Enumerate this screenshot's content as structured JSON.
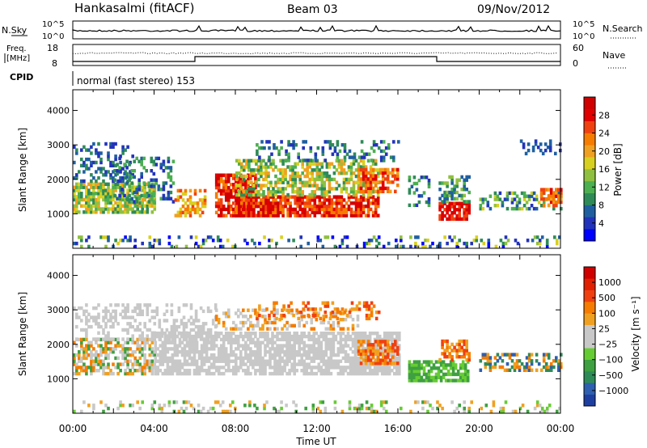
{
  "header": {
    "station": "Hankasalmi (fitACF)",
    "beam": "Beam 03",
    "date": "09/Nov/2012"
  },
  "strip": {
    "nsky_label": "N.Sky",
    "nsky_ticks": [
      "10^5",
      "10^0"
    ],
    "nsearch_label": "N.Search",
    "nsearch_ticks": [
      "10^5",
      "10^0"
    ],
    "freq_label_1": "Freq.",
    "freq_label_2": "[MHz]",
    "freq_ticks": [
      "18",
      "8"
    ],
    "nave_label": "Nave",
    "nave_ticks": [
      "60",
      "0"
    ],
    "cpid_label": "CPID",
    "cpid_text": "normal (fast stereo) 153"
  },
  "chart_data": [
    {
      "type": "heatmap",
      "panel": "power",
      "ylabel": "Slant Range [km]",
      "yticks": [
        1000,
        2000,
        3000,
        4000
      ],
      "ylim": [
        0,
        4600
      ],
      "xlim": [
        0,
        24
      ],
      "colorbar": {
        "label": "Power [dB]",
        "ticks": [
          "28",
          "24",
          "20",
          "16",
          "12",
          "8",
          "4"
        ],
        "colors": [
          "#0000ff",
          "#2233bb",
          "#1f5fa0",
          "#2e8b57",
          "#4caf50",
          "#90c040",
          "#d8d020",
          "#f0a020",
          "#f57c00",
          "#f04010",
          "#e00000",
          "#d00000"
        ]
      }
    },
    {
      "type": "heatmap",
      "panel": "velocity",
      "ylabel": "Slant Range [km]",
      "yticks": [
        1000,
        2000,
        3000,
        4000
      ],
      "ylim": [
        0,
        4600
      ],
      "xlim": [
        0,
        24
      ],
      "colorbar": {
        "label": "Velocity [m s⁻¹]",
        "ticks": [
          "1000",
          "500",
          "100",
          "25",
          "−25",
          "−100",
          "−500",
          "−1000"
        ],
        "colors": [
          "#1f3fa0",
          "#2e5fb0",
          "#2e8b57",
          "#3ea040",
          "#66cc33",
          "#c8c8c8",
          "#c8c8c8",
          "#f0a020",
          "#f57c00",
          "#f04010",
          "#e02000",
          "#d00000"
        ]
      }
    }
  ],
  "xaxis": {
    "label": "Time UT",
    "ticks": [
      "00:00",
      "04:00",
      "08:00",
      "12:00",
      "16:00",
      "20:00",
      "00:00"
    ]
  }
}
